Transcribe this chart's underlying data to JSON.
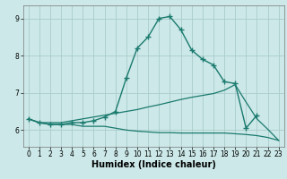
{
  "xlabel": "Humidex (Indice chaleur)",
  "bg_color": "#cce8e8",
  "grid_color": "#aacccc",
  "line_color": "#1a7a6e",
  "x": [
    0,
    1,
    2,
    3,
    4,
    5,
    6,
    7,
    8,
    9,
    10,
    11,
    12,
    13,
    14,
    15,
    16,
    17,
    18,
    19,
    20,
    21,
    22,
    23
  ],
  "line1": [
    6.3,
    6.2,
    6.15,
    6.15,
    6.2,
    6.2,
    6.25,
    6.35,
    6.5,
    7.4,
    8.2,
    8.5,
    9.0,
    9.05,
    8.7,
    8.15,
    7.9,
    7.75,
    7.3,
    7.25,
    6.05,
    6.4,
    null,
    null
  ],
  "line2": [
    6.3,
    6.2,
    6.2,
    6.2,
    6.25,
    6.3,
    6.35,
    6.4,
    6.45,
    6.5,
    6.55,
    6.62,
    6.68,
    6.75,
    6.82,
    6.88,
    6.93,
    6.98,
    7.07,
    7.22,
    6.75,
    6.3,
    6.02,
    5.72
  ],
  "line3": [
    6.3,
    6.2,
    6.15,
    6.15,
    6.15,
    6.1,
    6.1,
    6.1,
    6.05,
    6.0,
    5.97,
    5.95,
    5.93,
    5.93,
    5.92,
    5.92,
    5.92,
    5.92,
    5.92,
    5.9,
    5.88,
    5.85,
    5.8,
    5.72
  ],
  "xlim": [
    -0.5,
    23.5
  ],
  "ylim": [
    5.55,
    9.35
  ],
  "yticks": [
    6,
    7,
    8,
    9
  ],
  "xticks": [
    0,
    1,
    2,
    3,
    4,
    5,
    6,
    7,
    8,
    9,
    10,
    11,
    12,
    13,
    14,
    15,
    16,
    17,
    18,
    19,
    20,
    21,
    22,
    23
  ]
}
